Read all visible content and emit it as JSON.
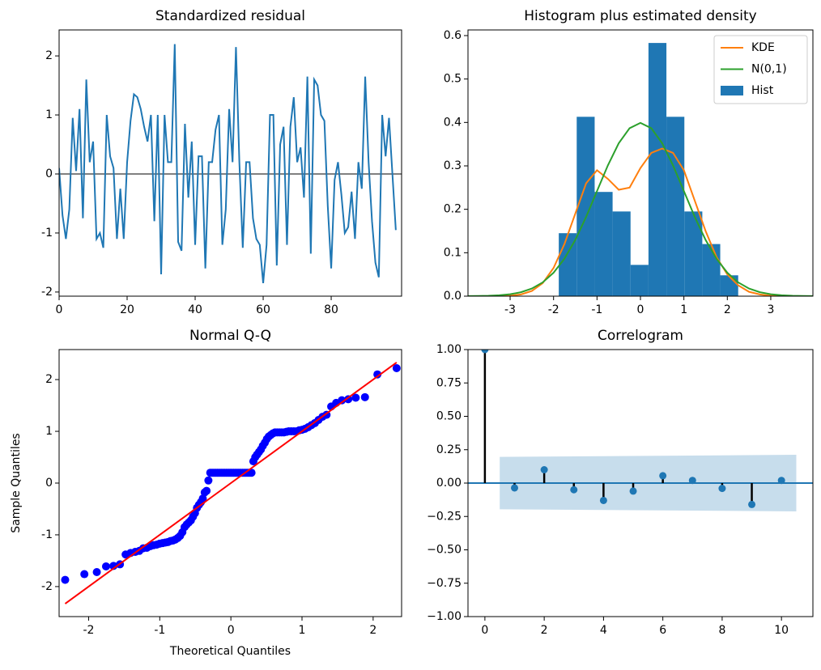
{
  "chart_data": [
    {
      "type": "line",
      "title": "Standardized residual",
      "color": "#1f77b4",
      "hline": 0,
      "hline_color": "#808080",
      "x": [
        0,
        1,
        2,
        3,
        4,
        5,
        6,
        7,
        8,
        9,
        10,
        11,
        12,
        13,
        14,
        15,
        16,
        17,
        18,
        19,
        20,
        21,
        22,
        23,
        24,
        25,
        26,
        27,
        28,
        29,
        30,
        31,
        32,
        33,
        34,
        35,
        36,
        37,
        38,
        39,
        40,
        41,
        42,
        43,
        44,
        45,
        46,
        47,
        48,
        49,
        50,
        51,
        52,
        53,
        54,
        55,
        56,
        57,
        58,
        59,
        60,
        61,
        62,
        63,
        64,
        65,
        66,
        67,
        68,
        69,
        70,
        71,
        72,
        73,
        74,
        75,
        76,
        77,
        78,
        79,
        80,
        81,
        82,
        83,
        84,
        85,
        86,
        87,
        88,
        89,
        90,
        91,
        92,
        93,
        94,
        95,
        96,
        97,
        98,
        99
      ],
      "values": [
        0.1,
        -0.7,
        -1.1,
        -0.6,
        0.95,
        0.05,
        1.1,
        -0.75,
        1.6,
        0.2,
        0.55,
        -1.1,
        -1.0,
        -1.25,
        1.0,
        0.3,
        0.1,
        -1.1,
        -0.25,
        -1.1,
        0.2,
        0.9,
        1.35,
        1.3,
        1.1,
        0.8,
        0.55,
        1.0,
        -0.8,
        1.0,
        -1.7,
        1.0,
        0.2,
        0.2,
        2.2,
        -1.15,
        -1.3,
        0.85,
        -0.4,
        0.55,
        -1.2,
        0.3,
        0.3,
        -1.6,
        0.2,
        0.2,
        0.75,
        1.0,
        -1.2,
        -0.6,
        1.1,
        0.2,
        2.15,
        0.2,
        -1.25,
        0.2,
        0.2,
        -0.75,
        -1.1,
        -1.2,
        -1.85,
        -1.2,
        1.0,
        1.0,
        -1.55,
        0.5,
        0.8,
        -1.2,
        0.8,
        1.3,
        0.2,
        0.45,
        -0.4,
        1.65,
        -1.35,
        1.6,
        1.5,
        1.0,
        0.9,
        -0.55,
        -1.6,
        -0.1,
        0.2,
        -0.35,
        -1.0,
        -0.9,
        -0.3,
        -1.1,
        0.2,
        -0.25,
        1.65,
        0.2,
        -0.8,
        -1.5,
        -1.75,
        1.0,
        0.3,
        0.95,
        0.0,
        -0.95
      ],
      "xlim": [
        0,
        100.7
      ],
      "xticks": [
        0,
        20,
        40,
        60,
        80
      ],
      "ylim": [
        -2.07,
        2.44
      ],
      "yticks": [
        -2,
        -1,
        0,
        1,
        2
      ]
    },
    {
      "type": "histogram",
      "title": "Histogram plus estimated density",
      "name": "Hist",
      "color": "#1f77b4",
      "legend": "upper right",
      "bins": [
        -1.88,
        -1.467,
        -1.054,
        -0.641,
        -0.228,
        0.185,
        0.598,
        1.011,
        1.424,
        1.837,
        2.25
      ],
      "values": [
        0.145,
        0.413,
        0.24,
        0.195,
        0.072,
        0.583,
        0.413,
        0.195,
        0.12,
        0.048
      ],
      "series": [
        {
          "name": "KDE",
          "color": "#ff7f0e",
          "x": [
            -4,
            -3.75,
            -3.5,
            -3.25,
            -3,
            -2.75,
            -2.5,
            -2.25,
            -2,
            -1.75,
            -1.5,
            -1.25,
            -1,
            -0.75,
            -0.5,
            -0.25,
            0,
            0.25,
            0.5,
            0.75,
            1,
            1.25,
            1.5,
            1.75,
            2,
            2.25,
            2.5,
            2.75,
            3,
            3.25,
            3.5,
            3.75,
            4
          ],
          "values": [
            0,
            0,
            0,
            0,
            0.001,
            0.004,
            0.012,
            0.03,
            0.065,
            0.12,
            0.19,
            0.26,
            0.29,
            0.27,
            0.245,
            0.25,
            0.295,
            0.33,
            0.34,
            0.33,
            0.29,
            0.22,
            0.15,
            0.09,
            0.05,
            0.025,
            0.01,
            0.004,
            0.001,
            0,
            0,
            0,
            0
          ]
        },
        {
          "name": "N(0,1)",
          "color": "#2ca02c",
          "x": [
            -4,
            -3.75,
            -3.5,
            -3.25,
            -3,
            -2.75,
            -2.5,
            -2.25,
            -2,
            -1.75,
            -1.5,
            -1.25,
            -1,
            -0.75,
            -0.5,
            -0.25,
            0,
            0.25,
            0.5,
            0.75,
            1,
            1.25,
            1.5,
            1.75,
            2,
            2.25,
            2.5,
            2.75,
            3,
            3.25,
            3.5,
            3.75,
            4
          ],
          "values": [
            0.0001,
            0.0004,
            0.0009,
            0.002,
            0.0044,
            0.0091,
            0.0175,
            0.0317,
            0.054,
            0.0863,
            0.1295,
            0.1826,
            0.242,
            0.3011,
            0.3521,
            0.3867,
            0.3989,
            0.3867,
            0.3521,
            0.3011,
            0.242,
            0.1826,
            0.1295,
            0.0863,
            0.054,
            0.0317,
            0.0175,
            0.0091,
            0.0044,
            0.002,
            0.0009,
            0.0004,
            0.0001
          ]
        }
      ],
      "xlim": [
        -3.97,
        3.97
      ],
      "xticks": [
        -3,
        -2,
        -1,
        0,
        1,
        2,
        3
      ],
      "ylim": [
        0,
        0.613
      ],
      "yticks": [
        {
          "value": 0,
          "label": "0.0"
        },
        0.1,
        0.2,
        0.3,
        0.4,
        0.5,
        0.6
      ]
    },
    {
      "type": "scatter",
      "title": "Normal Q-Q",
      "x_label": "Theoretical Quantiles",
      "y_label": "Sample Quantiles",
      "color": "#0000ff",
      "x": [
        -2.33,
        -2.06,
        -1.885,
        -1.755,
        -1.65,
        -1.56,
        -1.48,
        -1.41,
        -1.345,
        -1.287,
        -1.232,
        -1.181,
        -1.133,
        -1.087,
        -1.043,
        -1.001,
        -0.961,
        -0.922,
        -0.885,
        -0.849,
        -0.814,
        -0.78,
        -0.746,
        -0.714,
        -0.682,
        -0.651,
        -0.621,
        -0.591,
        -0.562,
        -0.533,
        -0.505,
        -0.477,
        -0.449,
        -0.422,
        -0.395,
        -0.368,
        -0.342,
        -0.316,
        -0.29,
        -0.264,
        -0.239,
        -0.213,
        -0.188,
        -0.163,
        -0.137,
        -0.112,
        -0.087,
        -0.062,
        -0.037,
        -0.012,
        0.012,
        0.037,
        0.062,
        0.087,
        0.112,
        0.137,
        0.163,
        0.188,
        0.213,
        0.239,
        0.264,
        0.29,
        0.316,
        0.342,
        0.368,
        0.395,
        0.422,
        0.449,
        0.477,
        0.505,
        0.533,
        0.562,
        0.591,
        0.621,
        0.651,
        0.682,
        0.714,
        0.746,
        0.78,
        0.814,
        0.849,
        0.885,
        0.922,
        0.961,
        1.001,
        1.043,
        1.087,
        1.133,
        1.181,
        1.232,
        1.287,
        1.345,
        1.41,
        1.48,
        1.56,
        1.65,
        1.755,
        1.885,
        2.06,
        2.33
      ],
      "values": [
        -1.87,
        -1.76,
        -1.72,
        -1.61,
        -1.6,
        -1.57,
        -1.38,
        -1.35,
        -1.33,
        -1.31,
        -1.26,
        -1.25,
        -1.22,
        -1.2,
        -1.19,
        -1.17,
        -1.16,
        -1.15,
        -1.14,
        -1.12,
        -1.11,
        -1.09,
        -1.06,
        -1.02,
        -0.95,
        -0.85,
        -0.8,
        -0.76,
        -0.72,
        -0.65,
        -0.58,
        -0.48,
        -0.42,
        -0.37,
        -0.3,
        -0.18,
        -0.15,
        0.05,
        0.2,
        0.2,
        0.2,
        0.2,
        0.2,
        0.2,
        0.2,
        0.2,
        0.2,
        0.2,
        0.2,
        0.2,
        0.2,
        0.2,
        0.2,
        0.2,
        0.2,
        0.2,
        0.2,
        0.2,
        0.2,
        0.2,
        0.2,
        0.2,
        0.42,
        0.5,
        0.55,
        0.6,
        0.65,
        0.72,
        0.78,
        0.85,
        0.9,
        0.93,
        0.96,
        0.98,
        0.98,
        0.98,
        0.98,
        0.98,
        0.99,
        1.0,
        1.0,
        1.0,
        1.0,
        1.02,
        1.03,
        1.05,
        1.08,
        1.12,
        1.16,
        1.22,
        1.28,
        1.32,
        1.48,
        1.55,
        1.6,
        1.62,
        1.65,
        1.66,
        2.1,
        2.22
      ],
      "reference_line": {
        "color": "#ff0000",
        "x": [
          -2.33,
          2.33
        ],
        "values": [
          -2.33,
          2.33
        ]
      },
      "xlim": [
        -2.415,
        2.4
      ],
      "xticks": [
        -2,
        -1,
        0,
        1,
        2
      ],
      "ylim": [
        -2.58,
        2.58
      ],
      "yticks": [
        -2,
        -1,
        0,
        1,
        2
      ]
    },
    {
      "type": "stem",
      "title": "Correlogram",
      "color": "#1f77b4",
      "stem_color": "#000000",
      "hline": 0,
      "x": [
        0,
        1,
        2,
        3,
        4,
        5,
        6,
        7,
        8,
        9,
        10
      ],
      "values": [
        1.0,
        -0.036,
        0.1,
        -0.05,
        -0.13,
        -0.06,
        0.055,
        0.02,
        -0.04,
        -0.16,
        0.02
      ],
      "band": {
        "color": "#1f77b4",
        "x": [
          0.5,
          10.5
        ],
        "upper": [
          0.196,
          0.212
        ],
        "lower": [
          -0.196,
          -0.212
        ]
      },
      "xlim": [
        -0.57,
        11.06
      ],
      "xticks": [
        0,
        2,
        4,
        6,
        8,
        10
      ],
      "ylim": [
        -1,
        1
      ],
      "yticks": [
        {
          "value": -1,
          "label": "−1.00"
        },
        {
          "value": -0.75,
          "label": "−0.75"
        },
        {
          "value": -0.5,
          "label": "−0.50"
        },
        {
          "value": -0.25,
          "label": "−0.25"
        },
        {
          "value": 0,
          "label": "0.00"
        },
        {
          "value": 0.25,
          "label": "0.25"
        },
        {
          "value": 0.5,
          "label": "0.50"
        },
        {
          "value": 0.75,
          "label": "0.75"
        },
        {
          "value": 1,
          "label": "1.00"
        }
      ]
    }
  ]
}
